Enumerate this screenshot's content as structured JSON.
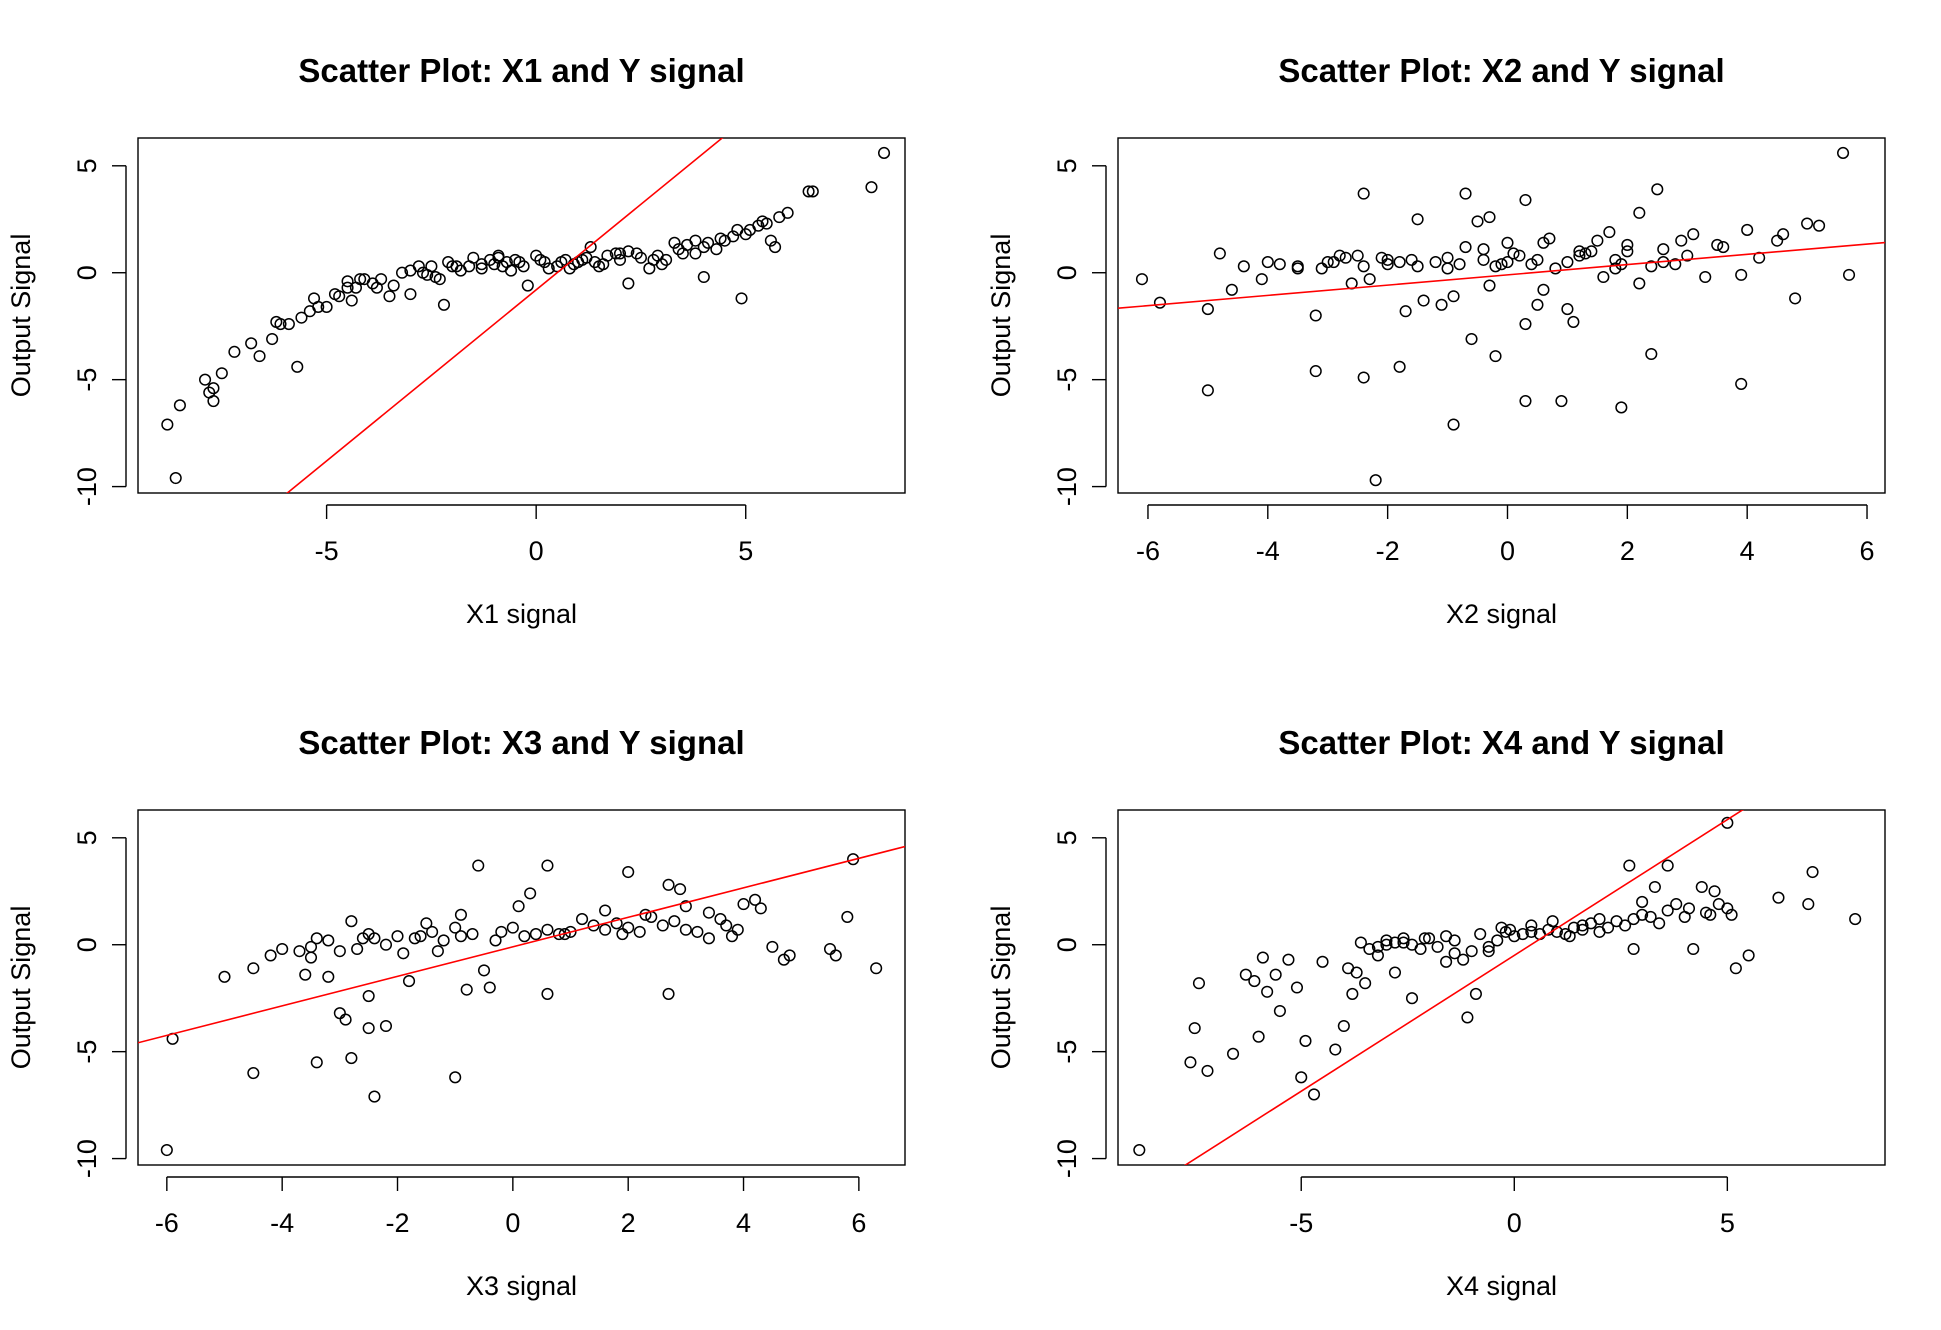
{
  "figure": {
    "background": "#ffffff",
    "point_color": "#000000",
    "fit_line_color": "#ff0000"
  },
  "chart_data": [
    {
      "type": "scatter",
      "title": "Scatter Plot: X1 and Y signal",
      "xlabel": "X1 signal",
      "ylabel": "Output Signal",
      "xlim": [
        -9.5,
        8.8
      ],
      "ylim": [
        -10.3,
        6.3
      ],
      "xticks": [
        -5,
        0,
        5
      ],
      "yticks": [
        -10,
        -5,
        0,
        5
      ],
      "grid": false,
      "legend": "none",
      "fit_line": {
        "slope": 1.6,
        "intercept": -0.8
      },
      "x": [
        -8.8,
        -8.6,
        -8.5,
        -7.9,
        -7.8,
        -7.7,
        -7.7,
        -7.5,
        -7.2,
        -6.8,
        -6.6,
        -6.3,
        -6.2,
        -6.1,
        -5.9,
        -5.7,
        -5.6,
        -5.4,
        -5.3,
        -5.2,
        -5.0,
        -4.8,
        -4.7,
        -4.5,
        -4.4,
        -4.3,
        -4.1,
        -3.8,
        -3.7,
        -3.5,
        -3.4,
        -3.2,
        -3.0,
        -2.8,
        -2.6,
        -2.5,
        -2.3,
        -2.2,
        -2.1,
        -1.9,
        -1.6,
        -1.5,
        -1.3,
        -1.1,
        -0.9,
        -0.8,
        -0.6,
        -0.5,
        -0.4,
        -0.2,
        0.1,
        0.2,
        0.5,
        0.6,
        0.8,
        0.9,
        1.1,
        1.3,
        1.5,
        1.7,
        1.9,
        2.0,
        2.2,
        2.4,
        2.7,
        2.9,
        3.1,
        3.3,
        3.5,
        3.6,
        3.8,
        4.0,
        4.1,
        4.3,
        4.5,
        4.7,
        4.9,
        5.1,
        5.3,
        5.5,
        5.6,
        5.7,
        5.8,
        6.0,
        6.5,
        6.6,
        8.0,
        8.3,
        -4.5,
        -3.0,
        -2.0,
        -1.0,
        0.3,
        1.0,
        2.0,
        3.0,
        4.0,
        5.0,
        -3.9,
        -2.7,
        -1.3,
        -0.3,
        0.7,
        1.6,
        2.5,
        3.4,
        4.4,
        5.4,
        -4.2,
        -2.4,
        -0.7,
        1.2,
        2.8,
        4.8,
        -1.8,
        0.0,
        2.2,
        3.8,
        -0.9,
        1.4
      ],
      "y": [
        -7.1,
        -9.6,
        -6.2,
        -5.0,
        -5.6,
        -6.0,
        -5.4,
        -4.7,
        -3.7,
        -3.3,
        -3.9,
        -3.1,
        -2.3,
        -2.4,
        -2.4,
        -4.4,
        -2.1,
        -1.8,
        -1.2,
        -1.6,
        -1.6,
        -1.0,
        -1.1,
        -0.7,
        -1.3,
        -0.7,
        -0.3,
        -0.7,
        -0.3,
        -1.1,
        -0.6,
        0.0,
        0.1,
        0.3,
        -0.1,
        0.3,
        -0.3,
        -1.5,
        0.5,
        0.3,
        0.3,
        0.7,
        0.4,
        0.6,
        0.8,
        0.3,
        0.1,
        0.6,
        0.5,
        -0.6,
        0.6,
        0.5,
        0.3,
        0.5,
        0.2,
        0.4,
        0.6,
        1.2,
        0.3,
        0.8,
        0.9,
        0.6,
        -0.5,
        0.9,
        0.2,
        0.8,
        0.6,
        1.4,
        0.9,
        1.3,
        1.5,
        -0.2,
        1.4,
        1.1,
        1.5,
        1.7,
        -1.2,
        2.0,
        2.2,
        2.3,
        1.5,
        1.2,
        2.6,
        2.8,
        3.8,
        3.8,
        4.0,
        5.6,
        -0.4,
        -1.0,
        0.3,
        0.4,
        0.2,
        0.5,
        0.9,
        0.4,
        1.2,
        1.8,
        -0.5,
        0.0,
        0.2,
        0.3,
        0.6,
        0.4,
        0.7,
        1.1,
        1.6,
        2.4,
        -0.3,
        -0.2,
        0.5,
        0.7,
        0.6,
        2.0,
        0.1,
        0.8,
        1.0,
        0.9,
        0.7,
        0.5
      ]
    },
    {
      "type": "scatter",
      "title": "Scatter Plot: X2 and Y signal",
      "xlabel": "X2 signal",
      "ylabel": "Output Signal",
      "xlim": [
        -6.5,
        6.3
      ],
      "ylim": [
        -10.3,
        6.3
      ],
      "xticks": [
        -6,
        -4,
        -2,
        0,
        2,
        4,
        6
      ],
      "yticks": [
        -10,
        -5,
        0,
        5
      ],
      "grid": false,
      "legend": "none",
      "fit_line": {
        "slope": 0.24,
        "intercept": -0.1
      },
      "x": [
        -6.1,
        -5.8,
        -5.0,
        -4.8,
        -4.6,
        -4.4,
        -4.0,
        -3.8,
        -3.5,
        -3.2,
        -3.0,
        -2.8,
        -2.6,
        -2.4,
        -2.3,
        -2.1,
        -2.0,
        -1.8,
        -1.7,
        -1.5,
        -1.4,
        -1.2,
        -1.0,
        -0.9,
        -0.8,
        -0.6,
        -0.4,
        -0.3,
        -0.2,
        0.0,
        0.1,
        0.3,
        0.4,
        0.5,
        0.6,
        0.8,
        1.0,
        1.1,
        1.2,
        1.4,
        1.6,
        1.8,
        2.0,
        2.2,
        2.4,
        2.6,
        2.8,
        3.0,
        3.3,
        3.6,
        3.9,
        4.2,
        4.5,
        4.8,
        5.0,
        5.2,
        5.6,
        5.7,
        -5.0,
        -3.2,
        -2.4,
        -2.2,
        -1.8,
        -0.9,
        -0.2,
        0.3,
        0.9,
        1.9,
        2.4,
        3.9,
        -2.4,
        -0.7,
        0.3,
        1.5,
        2.5,
        -1.5,
        -0.5,
        0.7,
        1.7,
        -0.3,
        -4.1,
        -3.1,
        -2.9,
        -2.7,
        -1.1,
        -0.7,
        0.2,
        0.5,
        1.0,
        1.9,
        2.2,
        2.6,
        3.1,
        4.0,
        -1.0,
        0.0,
        1.3,
        2.0,
        3.5,
        4.6,
        -3.5,
        -2.0,
        -0.1,
        1.2,
        2.9,
        -2.5,
        -1.6,
        -0.4,
        0.6,
        1.8
      ],
      "y": [
        -0.3,
        -1.4,
        -1.7,
        0.9,
        -0.8,
        0.3,
        0.5,
        0.4,
        0.2,
        -2.0,
        0.5,
        0.8,
        -0.5,
        0.3,
        -0.3,
        0.7,
        0.4,
        0.5,
        -1.8,
        0.3,
        -1.3,
        0.5,
        0.2,
        -1.1,
        0.4,
        -3.1,
        0.6,
        -0.6,
        0.3,
        0.5,
        0.9,
        -2.4,
        0.4,
        0.6,
        -0.8,
        0.2,
        0.5,
        -2.3,
        0.8,
        1.0,
        -0.2,
        0.6,
        1.3,
        -0.5,
        0.3,
        1.1,
        0.4,
        0.8,
        -0.2,
        1.2,
        -0.1,
        0.7,
        1.5,
        -1.2,
        2.3,
        2.2,
        5.6,
        -0.1,
        -5.5,
        -4.6,
        -4.9,
        -9.7,
        -4.4,
        -7.1,
        -3.9,
        -6.0,
        -6.0,
        -6.3,
        -3.8,
        -5.2,
        3.7,
        3.7,
        3.4,
        1.5,
        3.9,
        2.5,
        2.4,
        1.6,
        1.9,
        2.6,
        -0.3,
        0.2,
        0.5,
        0.7,
        -1.5,
        1.2,
        0.8,
        -1.5,
        -1.7,
        0.4,
        2.8,
        0.5,
        1.8,
        2.0,
        0.7,
        1.4,
        0.9,
        1.0,
        1.3,
        1.8,
        0.3,
        0.6,
        0.4,
        1.0,
        1.5,
        0.8,
        0.6,
        1.1,
        1.4,
        0.2
      ]
    },
    {
      "type": "scatter",
      "title": "Scatter Plot: X3 and Y signal",
      "xlabel": "X3 signal",
      "ylabel": "Output Signal",
      "xlim": [
        -6.5,
        6.8
      ],
      "ylim": [
        -10.3,
        6.3
      ],
      "xticks": [
        -6,
        -4,
        -2,
        0,
        2,
        4,
        6
      ],
      "yticks": [
        -10,
        -5,
        0,
        5
      ],
      "grid": false,
      "legend": "none",
      "fit_line": {
        "slope": 0.69,
        "intercept": -0.1
      },
      "x": [
        -6.0,
        -5.9,
        -5.0,
        -4.5,
        -4.2,
        -4.0,
        -3.7,
        -3.6,
        -3.5,
        -3.4,
        -3.2,
        -3.0,
        -2.8,
        -2.7,
        -2.5,
        -2.4,
        -2.2,
        -2.0,
        -1.9,
        -1.7,
        -1.6,
        -1.4,
        -1.2,
        -1.0,
        -0.9,
        -0.7,
        -0.5,
        -0.3,
        -0.2,
        0.0,
        0.2,
        0.4,
        0.6,
        0.8,
        1.0,
        1.2,
        1.4,
        1.6,
        1.8,
        2.0,
        2.2,
        2.4,
        2.6,
        2.8,
        3.0,
        3.2,
        3.4,
        3.6,
        3.8,
        4.0,
        4.2,
        4.5,
        4.7,
        4.8,
        5.5,
        5.6,
        5.8,
        5.9,
        6.3,
        -4.5,
        -3.4,
        -3.0,
        -2.9,
        -2.5,
        -2.4,
        -2.2,
        -1.0,
        -2.8,
        -3.5,
        -0.6,
        0.6,
        2.0,
        2.7,
        3.0,
        -0.8,
        -2.5,
        0.6,
        2.7,
        3.4,
        -1.8,
        -0.4,
        1.6,
        3.7,
        -3.2,
        -1.3,
        0.3,
        2.3,
        4.3,
        -2.6,
        -0.9,
        0.9,
        2.9,
        -1.5,
        0.1,
        1.9,
        3.9
      ],
      "y": [
        -9.6,
        -4.4,
        -1.5,
        -1.1,
        -0.5,
        -0.2,
        -0.3,
        -1.4,
        -0.6,
        0.3,
        -1.5,
        -0.3,
        1.1,
        -0.2,
        0.5,
        0.3,
        0.0,
        0.4,
        -0.4,
        0.3,
        0.4,
        0.6,
        0.2,
        0.8,
        0.4,
        0.5,
        -1.2,
        0.2,
        0.6,
        0.8,
        0.4,
        0.5,
        0.7,
        0.5,
        0.6,
        1.2,
        0.9,
        0.7,
        1.0,
        0.8,
        0.6,
        1.3,
        0.9,
        1.1,
        0.7,
        0.6,
        1.5,
        1.2,
        0.4,
        1.9,
        2.1,
        -0.1,
        -0.7,
        -0.5,
        -0.2,
        -0.5,
        1.3,
        4.0,
        -1.1,
        -6.0,
        -5.5,
        -3.2,
        -3.5,
        -3.9,
        -7.1,
        -3.8,
        -6.2,
        -5.3,
        -0.1,
        3.7,
        3.7,
        3.4,
        2.8,
        1.8,
        -2.1,
        -2.4,
        -2.3,
        -2.3,
        0.3,
        -1.7,
        -2.0,
        1.6,
        0.9,
        0.2,
        -0.3,
        2.4,
        1.4,
        1.7,
        0.3,
        1.4,
        0.5,
        2.6,
        1.0,
        1.8,
        0.5,
        0.7
      ]
    },
    {
      "type": "scatter",
      "title": "Scatter Plot: X4 and Y signal",
      "xlabel": "X4 signal",
      "ylabel": "Output Signal",
      "xlim": [
        -9.3,
        8.7
      ],
      "ylim": [
        -10.3,
        6.3
      ],
      "xticks": [
        -5,
        0,
        5
      ],
      "yticks": [
        -10,
        -5,
        0,
        5
      ],
      "grid": false,
      "legend": "none",
      "fit_line": {
        "slope": 1.27,
        "intercept": -0.5
      },
      "x": [
        -8.8,
        -7.6,
        -7.5,
        -7.4,
        -7.2,
        -6.6,
        -6.3,
        -6.1,
        -6.0,
        -5.9,
        -5.8,
        -5.6,
        -5.5,
        -5.3,
        -5.1,
        -5.0,
        -4.9,
        -4.7,
        -4.5,
        -4.2,
        -4.0,
        -3.9,
        -3.7,
        -3.6,
        -3.4,
        -3.2,
        -3.0,
        -2.8,
        -2.6,
        -2.4,
        -2.2,
        -2.0,
        -1.8,
        -1.6,
        -1.4,
        -1.2,
        -1.0,
        -0.8,
        -0.6,
        -0.4,
        -0.2,
        0.0,
        0.2,
        0.4,
        0.6,
        0.8,
        1.0,
        1.2,
        1.4,
        1.6,
        1.8,
        2.0,
        2.2,
        2.4,
        2.6,
        2.8,
        3.0,
        3.2,
        3.4,
        3.6,
        3.8,
        4.0,
        4.2,
        4.5,
        4.7,
        4.8,
        5.0,
        5.1,
        5.2,
        5.5,
        6.2,
        6.9,
        7.0,
        8.0,
        -3.8,
        -3.5,
        -2.4,
        -1.1,
        -0.9,
        -3.2,
        -2.8,
        -1.6,
        -0.6,
        0.4,
        2.7,
        3.3,
        4.6,
        5.0,
        -2.1,
        -0.3,
        1.3,
        2.8,
        4.4,
        -1.4,
        0.9,
        3.6,
        -2.6,
        -0.1,
        2.0,
        4.1,
        -3.0,
        1.6,
        3.0
      ],
      "y": [
        -9.6,
        -5.5,
        -3.9,
        -1.8,
        -5.9,
        -5.1,
        -1.4,
        -1.7,
        -4.3,
        -0.6,
        -2.2,
        -1.4,
        -3.1,
        -0.7,
        -2.0,
        -6.2,
        -4.5,
        -7.0,
        -0.8,
        -4.9,
        -3.8,
        -1.1,
        -1.3,
        0.1,
        -0.2,
        -0.1,
        0.2,
        0.1,
        0.3,
        0.0,
        -0.2,
        0.3,
        -0.1,
        0.4,
        -0.4,
        -0.7,
        -0.3,
        0.5,
        -0.3,
        0.2,
        0.6,
        0.4,
        0.5,
        0.6,
        0.5,
        0.7,
        0.6,
        0.5,
        0.8,
        0.7,
        1.0,
        0.6,
        0.8,
        1.1,
        0.9,
        1.2,
        1.4,
        1.3,
        1.0,
        1.6,
        1.9,
        1.3,
        -0.2,
        1.5,
        2.5,
        1.9,
        1.7,
        1.4,
        -1.1,
        -0.5,
        2.2,
        1.9,
        3.4,
        1.2,
        -2.3,
        -1.8,
        -2.5,
        -3.4,
        -2.3,
        -0.5,
        -1.3,
        -0.8,
        -0.1,
        0.9,
        3.7,
        2.7,
        1.4,
        5.7,
        0.3,
        0.8,
        0.4,
        -0.2,
        2.7,
        0.2,
        1.1,
        3.7,
        0.1,
        0.7,
        1.2,
        1.7,
        0.0,
        0.9,
        2.0
      ]
    }
  ]
}
